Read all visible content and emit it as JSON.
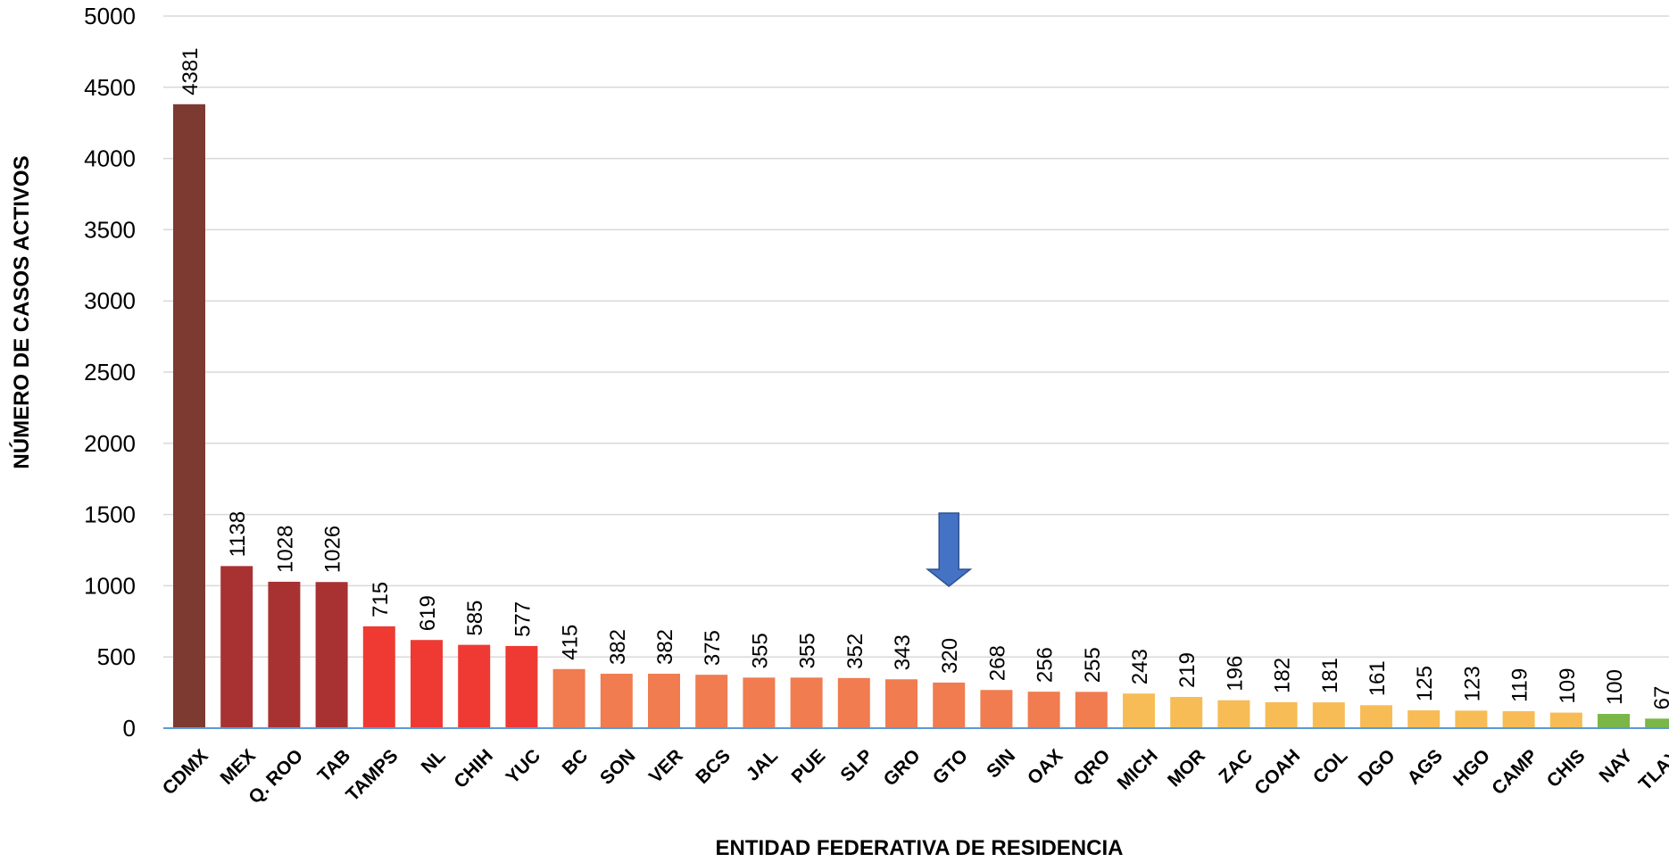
{
  "chart_data": {
    "type": "bar",
    "xlabel": "ENTIDAD FEDERATIVA DE RESIDENCIA",
    "ylabel": "NÚMERO DE CASOS ACTIVOS",
    "ylim": [
      0,
      5000
    ],
    "yticks": [
      0,
      500,
      1000,
      1500,
      2000,
      2500,
      3000,
      3500,
      4000,
      4500,
      5000
    ],
    "grid": "horizontal",
    "categories": [
      "CDMX",
      "MEX",
      "Q. ROO",
      "TAB",
      "TAMPS",
      "NL",
      "CHIH",
      "YUC",
      "BC",
      "SON",
      "VER",
      "BCS",
      "JAL",
      "PUE",
      "SLP",
      "GRO",
      "GTO",
      "SIN",
      "OAX",
      "QRO",
      "MICH",
      "MOR",
      "ZAC",
      "COAH",
      "COL",
      "DGO",
      "AGS",
      "HGO",
      "CAMP",
      "CHIS",
      "NAY",
      "TLAX"
    ],
    "values": [
      4381,
      1138,
      1028,
      1026,
      715,
      619,
      585,
      577,
      415,
      382,
      382,
      375,
      355,
      355,
      352,
      343,
      320,
      268,
      256,
      255,
      243,
      219,
      196,
      182,
      181,
      161,
      125,
      123,
      119,
      109,
      100,
      67
    ],
    "bar_colors": [
      "#7d3a30",
      "#a83232",
      "#a83232",
      "#a83232",
      "#ee3a33",
      "#ee3a33",
      "#ee3a33",
      "#ee3a33",
      "#f07c4f",
      "#f07c4f",
      "#f07c4f",
      "#f07c4f",
      "#f07c4f",
      "#f07c4f",
      "#f07c4f",
      "#f07c4f",
      "#f07c4f",
      "#f07c4f",
      "#f07c4f",
      "#f07c4f",
      "#f7bc55",
      "#f7bc55",
      "#f7bc55",
      "#f7bc55",
      "#f7bc55",
      "#f7bc55",
      "#f7bc55",
      "#f7bc55",
      "#f7bc55",
      "#f7bc55",
      "#7ab648",
      "#7ab648"
    ],
    "annotation": {
      "type": "down-arrow",
      "category": "GTO",
      "color": "#4472c4"
    }
  }
}
